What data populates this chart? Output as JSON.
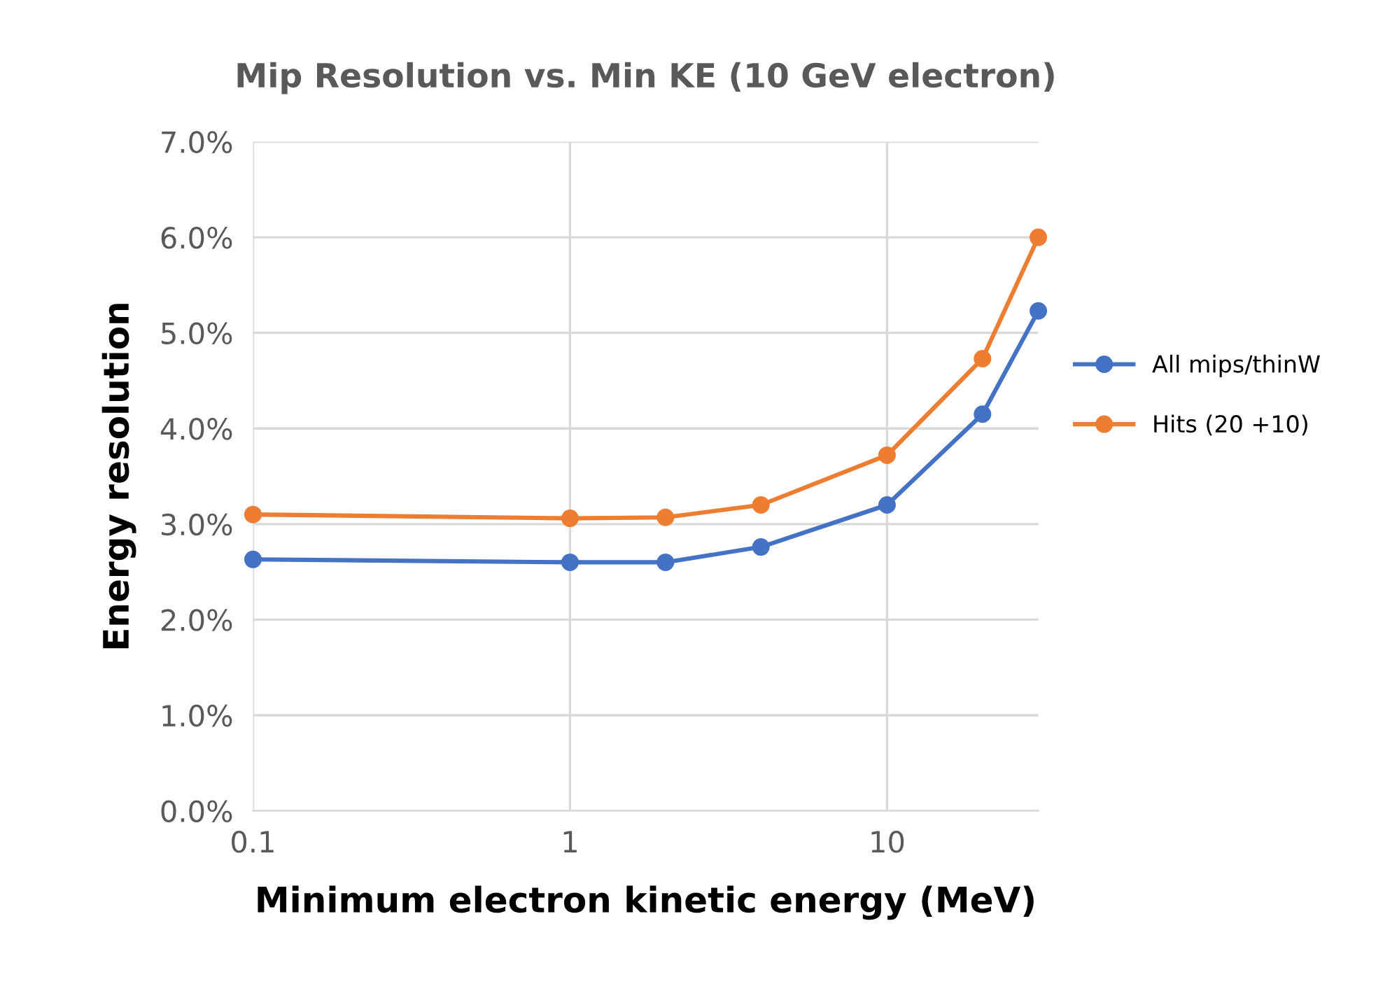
{
  "chart_data": {
    "type": "line",
    "title": "Mip Resolution vs. Min KE (10 GeV electron)",
    "xlabel": "Minimum electron kinetic energy (MeV)",
    "ylabel": "Energy resolution",
    "x": [
      0.1,
      1,
      2,
      4,
      10,
      20,
      30
    ],
    "series": [
      {
        "name": "All mips/thinW",
        "color": "#4472c4",
        "values": [
          2.63,
          2.6,
          2.6,
          2.76,
          3.2,
          4.15,
          5.23
        ]
      },
      {
        "name": "Hits (20 +10)",
        "color": "#ed7d31",
        "values": [
          3.1,
          3.06,
          3.07,
          3.2,
          3.72,
          4.73,
          6.0
        ]
      }
    ],
    "log": "x",
    "xlim": [
      0.1,
      30
    ],
    "xticks": [
      0.1,
      1,
      10
    ],
    "ylim": [
      0,
      7
    ],
    "yticks": [
      {
        "value": 0,
        "label": "0.0%"
      },
      {
        "value": 1,
        "label": "1.0%"
      },
      {
        "value": 2,
        "label": "2.0%"
      },
      {
        "value": 3,
        "label": "3.0%"
      },
      {
        "value": 4,
        "label": "4.0%"
      },
      {
        "value": 5,
        "label": "5.0%"
      },
      {
        "value": 6,
        "label": "6.0%"
      },
      {
        "value": 7,
        "label": "7.0%"
      }
    ],
    "grid": true,
    "legend": "right",
    "marker": "circle",
    "line_style": "solid"
  }
}
